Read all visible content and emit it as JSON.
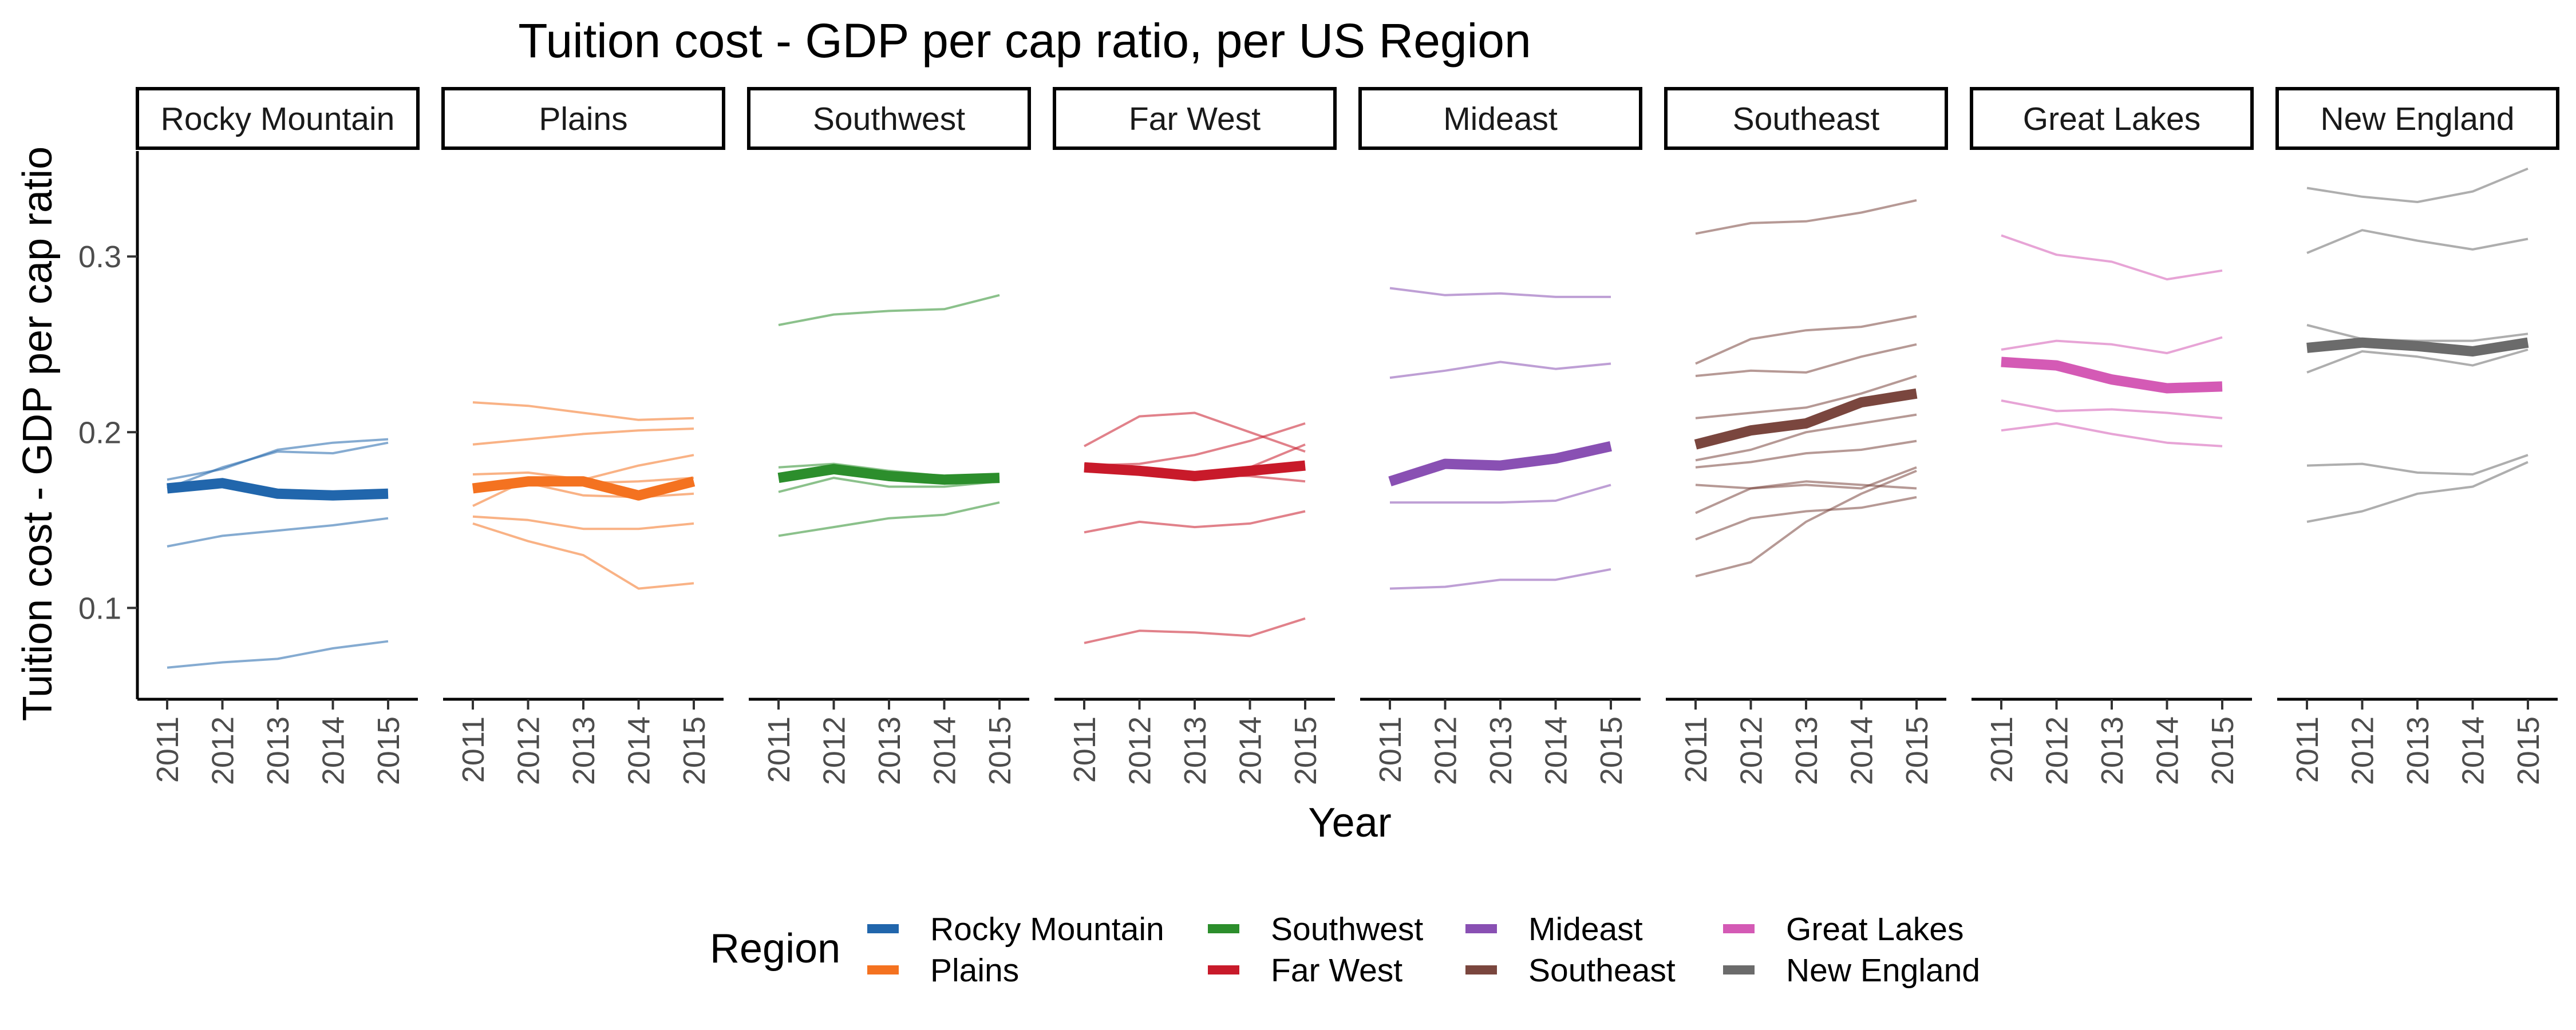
{
  "chart_data": {
    "type": "line",
    "title": "Tuition cost - GDP per cap ratio, per US Region",
    "xlabel": "Year",
    "ylabel": "Tuition cost - GDP per cap ratio",
    "x": [
      "2011",
      "2012",
      "2013",
      "2014",
      "2015"
    ],
    "ylim": [
      0.048,
      0.36
    ],
    "yticks": [
      "0.1",
      "0.2",
      "0.3"
    ],
    "grid": false,
    "legend": {
      "title": "Region",
      "placement": "bottom",
      "items": [
        "Rocky Mountain",
        "Plains",
        "Southwest",
        "Far West",
        "Mideast",
        "Southeast",
        "Great Lakes",
        "New England"
      ]
    },
    "panels": [
      {
        "name": "Rocky Mountain",
        "color": "#2166ac",
        "average": [
          0.168,
          0.171,
          0.165,
          0.164,
          0.165
        ],
        "states": [
          [
            0.173,
            0.179,
            0.19,
            0.194,
            0.196
          ],
          [
            0.168,
            0.18,
            0.189,
            0.188,
            0.194
          ],
          [
            0.135,
            0.141,
            0.144,
            0.147,
            0.151
          ],
          [
            0.066,
            0.069,
            0.071,
            0.077,
            0.081
          ]
        ]
      },
      {
        "name": "Plains",
        "color": "#f47220",
        "average": [
          0.168,
          0.172,
          0.172,
          0.164,
          0.172
        ],
        "states": [
          [
            0.217,
            0.215,
            0.211,
            0.207,
            0.208
          ],
          [
            0.193,
            0.196,
            0.199,
            0.201,
            0.202
          ],
          [
            0.176,
            0.177,
            0.173,
            0.181,
            0.187
          ],
          [
            0.168,
            0.171,
            0.164,
            0.163,
            0.165
          ],
          [
            0.158,
            0.173,
            0.171,
            0.172,
            0.174
          ],
          [
            0.152,
            0.15,
            0.145,
            0.145,
            0.148
          ],
          [
            0.148,
            0.138,
            0.13,
            0.111,
            0.114
          ]
        ]
      },
      {
        "name": "Southwest",
        "color": "#2c8e2c",
        "average": [
          0.174,
          0.179,
          0.175,
          0.173,
          0.174
        ],
        "states": [
          [
            0.261,
            0.267,
            0.269,
            0.27,
            0.278
          ],
          [
            0.18,
            0.182,
            0.178,
            0.175,
            0.174
          ],
          [
            0.166,
            0.174,
            0.169,
            0.169,
            0.172
          ],
          [
            0.141,
            0.146,
            0.151,
            0.153,
            0.16
          ]
        ]
      },
      {
        "name": "Far West",
        "color": "#c81a2a",
        "average": [
          0.18,
          0.178,
          0.175,
          0.178,
          0.181
        ],
        "states": [
          [
            0.192,
            0.209,
            0.211,
            0.2,
            0.189
          ],
          [
            0.181,
            0.182,
            0.187,
            0.195,
            0.205
          ],
          [
            0.178,
            0.176,
            0.173,
            0.18,
            0.193
          ],
          [
            0.182,
            0.179,
            0.176,
            0.175,
            0.172
          ],
          [
            0.143,
            0.149,
            0.146,
            0.148,
            0.155
          ],
          [
            0.08,
            0.087,
            0.086,
            0.084,
            0.094
          ]
        ]
      },
      {
        "name": "Mideast",
        "color": "#8950b3",
        "average": [
          0.172,
          0.182,
          0.181,
          0.185,
          0.192
        ],
        "states": [
          [
            0.282,
            0.278,
            0.279,
            0.277,
            0.277
          ],
          [
            0.231,
            0.235,
            0.24,
            0.236,
            0.239
          ],
          [
            0.16,
            0.16,
            0.16,
            0.161,
            0.17
          ],
          [
            0.111,
            0.112,
            0.116,
            0.116,
            0.122
          ]
        ]
      },
      {
        "name": "Southeast",
        "color": "#7a463e",
        "average": [
          0.193,
          0.201,
          0.205,
          0.217,
          0.222
        ],
        "states": [
          [
            0.313,
            0.319,
            0.32,
            0.325,
            0.332
          ],
          [
            0.239,
            0.253,
            0.258,
            0.26,
            0.266
          ],
          [
            0.232,
            0.235,
            0.234,
            0.243,
            0.25
          ],
          [
            0.208,
            0.211,
            0.214,
            0.222,
            0.232
          ],
          [
            0.184,
            0.19,
            0.2,
            0.205,
            0.21
          ],
          [
            0.18,
            0.183,
            0.188,
            0.19,
            0.195
          ],
          [
            0.17,
            0.168,
            0.172,
            0.17,
            0.168
          ],
          [
            0.154,
            0.168,
            0.17,
            0.168,
            0.18
          ],
          [
            0.139,
            0.151,
            0.155,
            0.157,
            0.163
          ],
          [
            0.118,
            0.126,
            0.149,
            0.165,
            0.178
          ]
        ]
      },
      {
        "name": "Great Lakes",
        "color": "#d45ab5",
        "average": [
          0.24,
          0.238,
          0.23,
          0.225,
          0.226
        ],
        "states": [
          [
            0.312,
            0.301,
            0.297,
            0.287,
            0.292
          ],
          [
            0.247,
            0.252,
            0.25,
            0.245,
            0.254
          ],
          [
            0.218,
            0.212,
            0.213,
            0.211,
            0.208
          ],
          [
            0.201,
            0.205,
            0.199,
            0.194,
            0.192
          ]
        ]
      },
      {
        "name": "New England",
        "color": "#6b6b6b",
        "average": [
          0.248,
          0.251,
          0.249,
          0.246,
          0.251
        ],
        "states": [
          [
            0.339,
            0.334,
            0.331,
            0.337,
            0.35
          ],
          [
            0.302,
            0.315,
            0.309,
            0.304,
            0.31
          ],
          [
            0.261,
            0.253,
            0.252,
            0.252,
            0.256
          ],
          [
            0.234,
            0.246,
            0.243,
            0.238,
            0.247
          ],
          [
            0.181,
            0.182,
            0.177,
            0.176,
            0.187
          ],
          [
            0.149,
            0.155,
            0.165,
            0.169,
            0.183
          ]
        ]
      }
    ]
  }
}
